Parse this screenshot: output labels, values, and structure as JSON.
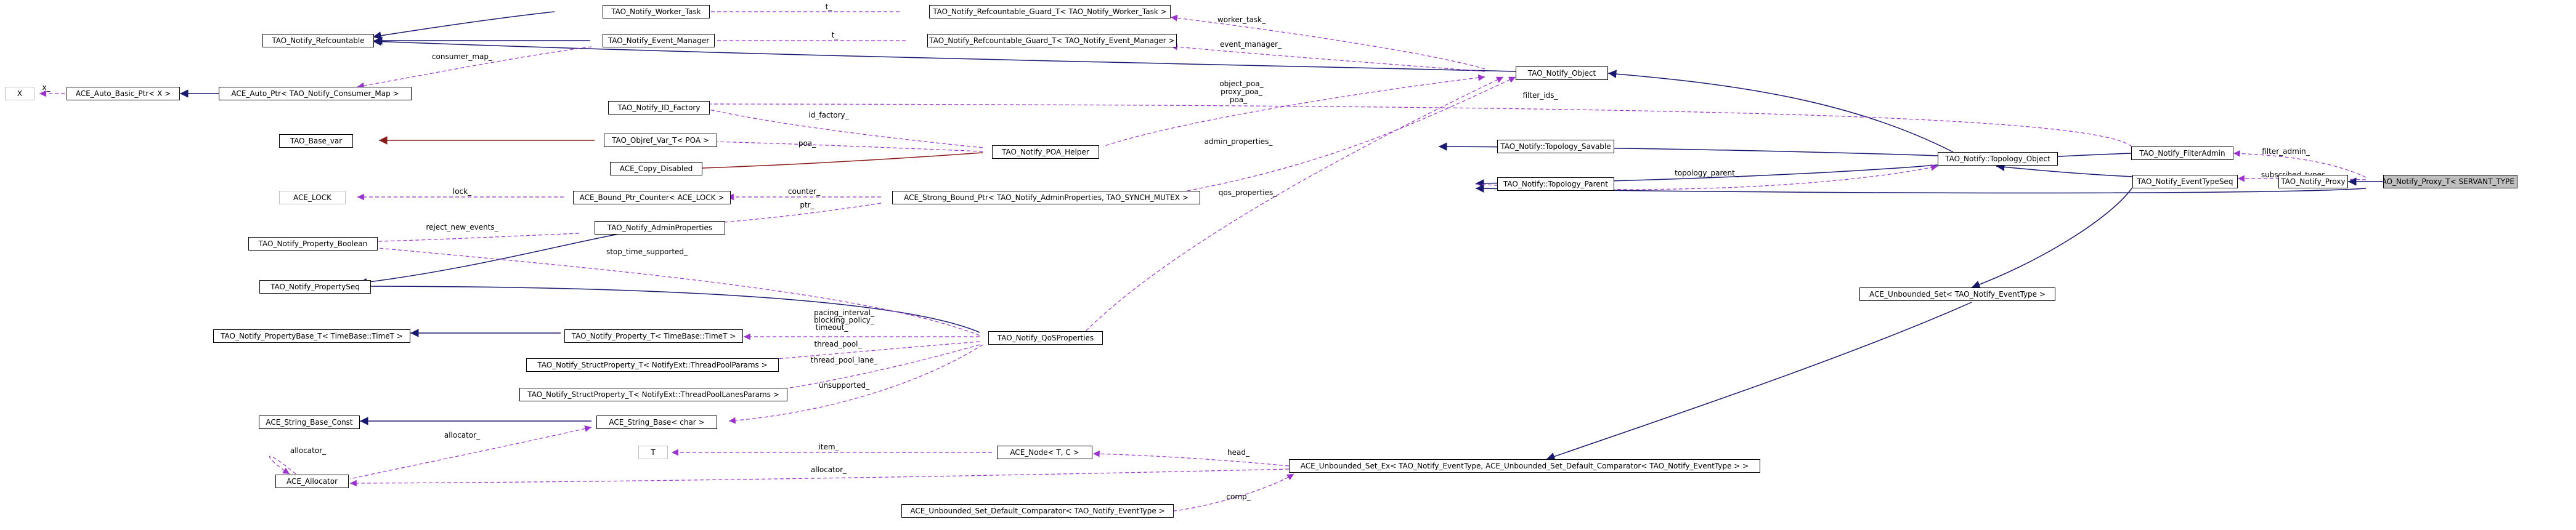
{
  "nodes": {
    "proxy_t": "TAO_Notify_Proxy_T< SERVANT_TYPE >",
    "proxy": "TAO_Notify_Proxy",
    "filter_admin": "TAO_Notify_FilterAdmin",
    "event_type_seq": "TAO_Notify_EventTypeSeq",
    "topology_object": "TAO_Notify::Topology_Object",
    "topology_savable": "TAO_Notify::Topology_Savable",
    "topology_parent": "TAO_Notify::Topology_Parent",
    "notify_object": "TAO_Notify_Object",
    "refcountable": "TAO_Notify_Refcountable",
    "worker_task": "TAO_Notify_Worker_Task",
    "event_manager": "TAO_Notify_Event_Manager",
    "guard_worker_task": "TAO_Notify_Refcountable_Guard_T< TAO_Notify_Worker_Task >",
    "guard_event_manager": "TAO_Notify_Refcountable_Guard_T< TAO_Notify_Event_Manager >",
    "x": "X",
    "ace_auto_basic_ptr": "ACE_Auto_Basic_Ptr< X >",
    "ace_auto_ptr_consumer_map": "ACE_Auto_Ptr< TAO_Notify_Consumer_Map >",
    "id_factory": "TAO_Notify_ID_Factory",
    "tao_base_var": "TAO_Base_var",
    "objref_var": "TAO_Objref_Var_T< POA >",
    "ace_copy_disabled": "ACE_Copy_Disabled",
    "poa_helper": "TAO_Notify_POA_Helper",
    "ace_lock": "ACE_LOCK",
    "ace_bound_ptr_counter": "ACE_Bound_Ptr_Counter< ACE_LOCK >",
    "strong_bound_ptr": "ACE_Strong_Bound_Ptr< TAO_Notify_AdminProperties, TAO_SYNCH_MUTEX >",
    "property_boolean": "TAO_Notify_Property_Boolean",
    "admin_properties": "TAO_Notify_AdminProperties",
    "property_seq": "TAO_Notify_PropertySeq",
    "property_base_timet": "TAO_Notify_PropertyBase_T< TimeBase::TimeT >",
    "property_timet": "TAO_Notify_Property_T< TimeBase::TimeT >",
    "qos_properties": "TAO_Notify_QoSProperties",
    "struct_thread_pool_params": "TAO_Notify_StructProperty_T< NotifyExt::ThreadPoolParams >",
    "struct_thread_pool_lanes_params": "TAO_Notify_StructProperty_T< NotifyExt::ThreadPoolLanesParams >",
    "ace_string_base_const": "ACE_String_Base_Const",
    "ace_string_base_char": "ACE_String_Base< char >",
    "t": "T",
    "ace_node": "ACE_Node< T, C >",
    "ace_allocator": "ACE_Allocator",
    "unbounded_set": "ACE_Unbounded_Set< TAO_Notify_EventType >",
    "unbounded_set_ex": "ACE_Unbounded_Set_Ex< TAO_Notify_EventType, ACE_Unbounded_Set_Default_Comparator< TAO_Notify_EventType > >",
    "default_comparator": "ACE_Unbounded_Set_Default_Comparator< TAO_Notify_EventType >"
  },
  "edge_labels": {
    "t_guard_worker": "t_",
    "t_guard_event": "t_",
    "worker_task": "worker_task_",
    "event_manager": "event_manager_",
    "consumer_map": "consumer_map_",
    "x": "x_",
    "object_poa": "object_poa_",
    "proxy_poa": "proxy_poa_",
    "poa_helper_poa": "poa_",
    "filter_ids": "filter_ids_",
    "id_factory": "id_factory_",
    "objref_poa": "poa_",
    "admin_properties": "admin_properties_",
    "topology_parent": "topology_parent_",
    "filter_admin": "filter_admin_",
    "subscribed_types": "subscribed_types_",
    "lock": "lock_",
    "counter": "counter_",
    "ptr": "ptr_",
    "qos_properties": "qos_properties_",
    "reject_new_events": "reject_new_events_",
    "stop_time_supported": "stop_time_supported_",
    "pacing_interval": "pacing_interval_",
    "blocking_policy": "blocking_policy_",
    "timeout": "timeout_",
    "thread_pool": "thread_pool_",
    "thread_pool_lane": "thread_pool_lane_",
    "unsupported": "unsupported_",
    "allocator_string": "allocator_",
    "allocator_self": "allocator_",
    "allocator_set": "allocator_",
    "item": "item_",
    "head": "head_",
    "comp": "comp_"
  }
}
